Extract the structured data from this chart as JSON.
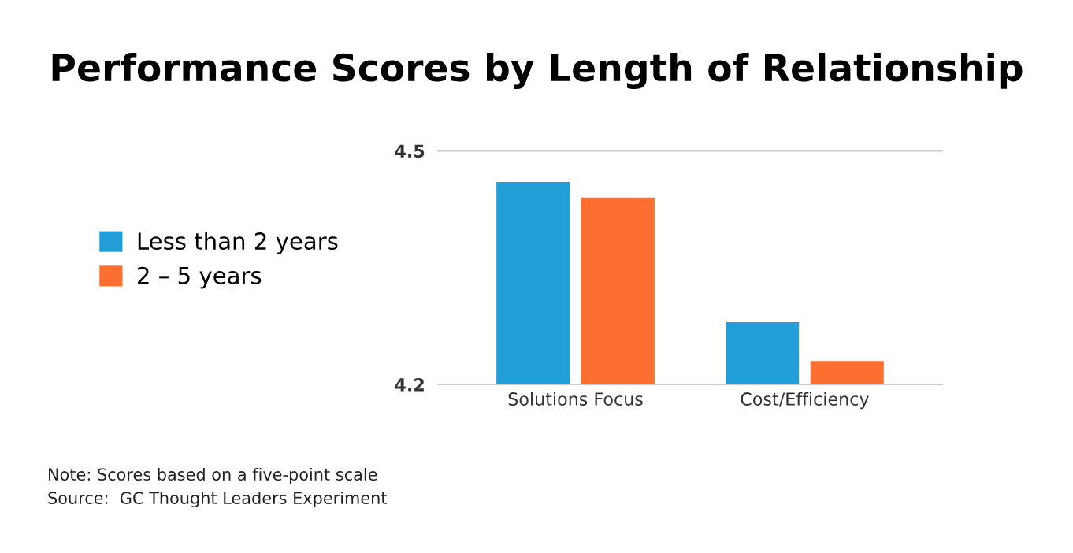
{
  "chart_data": {
    "type": "bar",
    "title": "Performance Scores by Length of Relationship",
    "categories": [
      "Solutions Focus",
      "Cost/Efficiency"
    ],
    "series": [
      {
        "name": "Less than 2 years",
        "color": "#229ed9",
        "values": [
          4.46,
          4.28
        ]
      },
      {
        "name": "2 – 5 years",
        "color": "#fd6f31",
        "values": [
          4.44,
          4.23
        ]
      }
    ],
    "ylim": [
      4.2,
      4.5
    ],
    "yticks": [
      4.2,
      4.5
    ],
    "grid": false,
    "legend": "left",
    "annotations": [
      "Note: Scores based on a five-point scale",
      "Source:  GC Thought Leaders Experiment"
    ]
  }
}
